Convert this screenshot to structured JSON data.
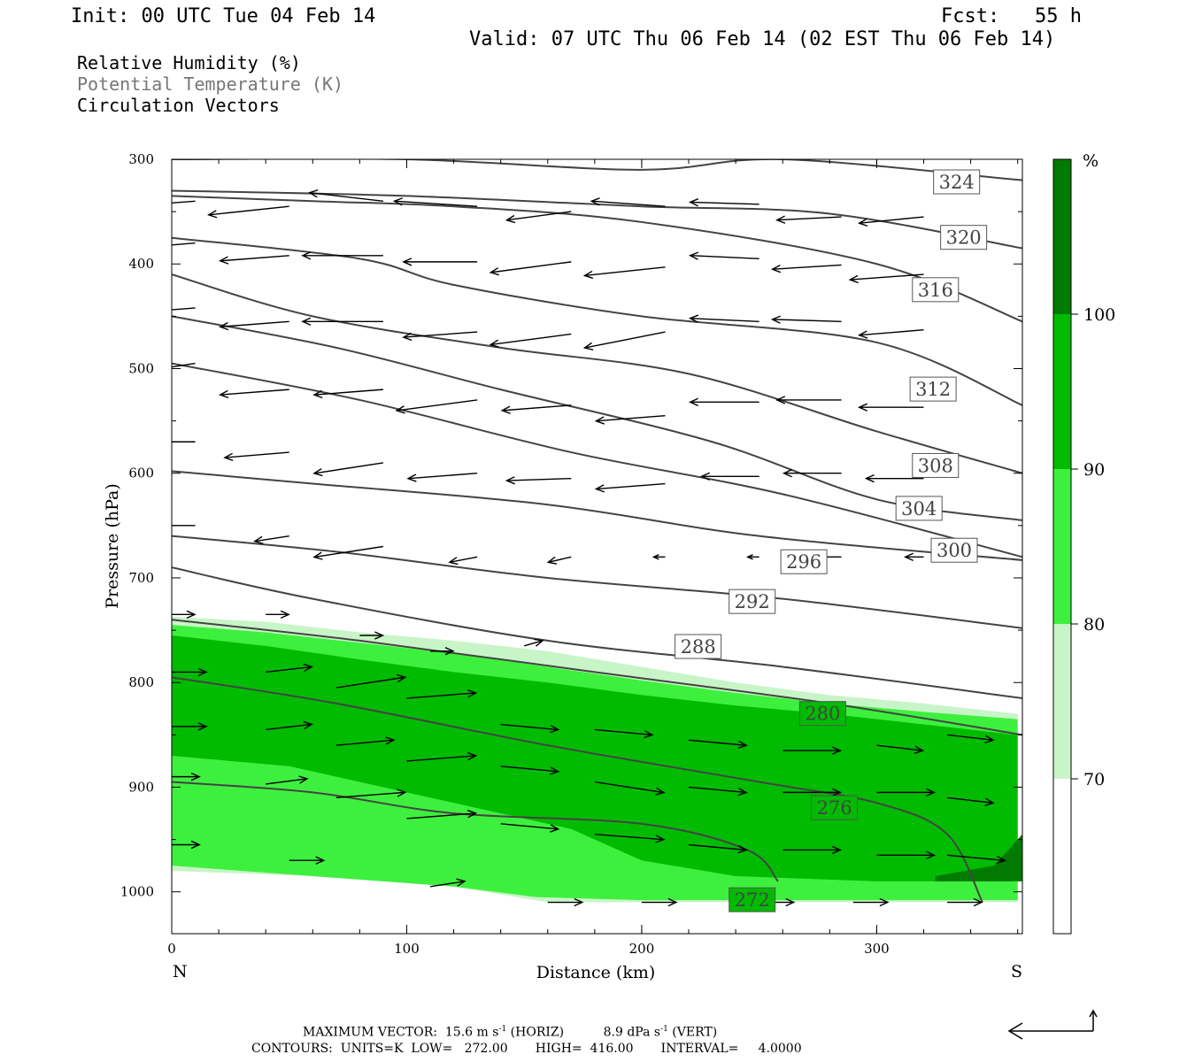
{
  "header": {
    "init": "Init: 00 UTC Tue 04 Feb 14",
    "fcst": "Fcst:   55 h",
    "valid": "Valid: 07 UTC Thu 06 Feb 14 (02 EST Thu 06 Feb 14)"
  },
  "legend": {
    "rh": "Relative Humidity (%)",
    "theta": "Potential Temperature (K)",
    "vectors": "Circulation Vectors"
  },
  "colors": {
    "rh70": "#c8f5c8",
    "rh80": "#3ef03e",
    "rh90": "#00bb00",
    "rh100": "#007a00",
    "theta": "#444444",
    "vector": "#000000"
  },
  "chart_data": {
    "type": "cross-section",
    "xlabel": "Distance (km)",
    "ylabel": "Pressure (hPa)",
    "xlim": [
      0,
      362
    ],
    "ylim": [
      1040,
      300
    ],
    "x_ticks": [
      "0",
      "100",
      "200",
      "300"
    ],
    "y_ticks": [
      "300",
      "400",
      "500",
      "600",
      "700",
      "800",
      "900",
      "1000"
    ],
    "endpoints": {
      "left": "N",
      "right": "S"
    },
    "colorbar": {
      "unit": "%",
      "levels": [
        "100",
        "90",
        "80",
        "70"
      ]
    },
    "rh_fill": [
      {
        "level": "70-80",
        "top": [
          [
            0,
            737
          ],
          [
            40,
            742
          ],
          [
            80,
            752
          ],
          [
            120,
            760
          ],
          [
            160,
            770
          ],
          [
            200,
            785
          ],
          [
            240,
            800
          ],
          [
            280,
            812
          ],
          [
            320,
            820
          ],
          [
            360,
            830
          ]
        ],
        "bottom": [
          [
            0,
            980
          ],
          [
            60,
            985
          ],
          [
            120,
            995
          ],
          [
            160,
            1010
          ],
          [
            200,
            1010
          ],
          [
            280,
            1010
          ],
          [
            360,
            1010
          ]
        ]
      },
      {
        "level": "80-90",
        "top": [
          [
            0,
            745
          ],
          [
            40,
            752
          ],
          [
            80,
            762
          ],
          [
            120,
            772
          ],
          [
            160,
            785
          ],
          [
            200,
            798
          ],
          [
            240,
            810
          ],
          [
            280,
            820
          ],
          [
            320,
            828
          ],
          [
            360,
            835
          ]
        ],
        "bottom": [
          [
            0,
            975
          ],
          [
            60,
            985
          ],
          [
            120,
            995
          ],
          [
            155,
            1005
          ],
          [
            200,
            1008
          ],
          [
            280,
            1008
          ],
          [
            360,
            1008
          ]
        ]
      },
      {
        "level": "90-100",
        "top": [
          [
            0,
            755
          ],
          [
            40,
            765
          ],
          [
            80,
            778
          ],
          [
            120,
            790
          ],
          [
            160,
            800
          ],
          [
            200,
            812
          ],
          [
            240,
            822
          ],
          [
            280,
            830
          ],
          [
            320,
            840
          ],
          [
            360,
            850
          ]
        ],
        "bottom": [
          [
            0,
            870
          ],
          [
            50,
            880
          ],
          [
            90,
            900
          ],
          [
            130,
            920
          ],
          [
            170,
            940
          ],
          [
            200,
            970
          ],
          [
            240,
            985
          ],
          [
            300,
            990
          ],
          [
            360,
            990
          ]
        ]
      },
      {
        "level": ">100",
        "top": [
          [
            325,
            985
          ],
          [
            350,
            975
          ],
          [
            362,
            945
          ]
        ],
        "bottom": [
          [
            325,
            990
          ],
          [
            362,
            990
          ]
        ]
      }
    ],
    "theta_contours": [
      {
        "value": "324",
        "points": [
          [
            0,
            300
          ],
          [
            100,
            300
          ],
          [
            200,
            310
          ],
          [
            260,
            300
          ],
          [
            362,
            320
          ]
        ],
        "label": [
          334,
          322
        ]
      },
      {
        "value": "320",
        "points": [
          [
            0,
            330
          ],
          [
            100,
            335
          ],
          [
            200,
            345
          ],
          [
            280,
            352
          ],
          [
            362,
            385
          ]
        ],
        "label": [
          337,
          375
        ]
      },
      {
        "value": "316",
        "points": [
          [
            0,
            335
          ],
          [
            60,
            340
          ],
          [
            120,
            345
          ],
          [
            200,
            360
          ],
          [
            300,
            400
          ],
          [
            362,
            455
          ]
        ],
        "label": [
          325,
          425
        ]
      },
      {
        "value": "312",
        "points": [
          [
            0,
            375
          ],
          [
            80,
            395
          ],
          [
            120,
            420
          ],
          [
            200,
            450
          ],
          [
            300,
            475
          ],
          [
            362,
            535
          ]
        ],
        "label": [
          324,
          520
        ]
      },
      {
        "value": "308",
        "points": [
          [
            0,
            410
          ],
          [
            60,
            450
          ],
          [
            140,
            480
          ],
          [
            220,
            505
          ],
          [
            300,
            560
          ],
          [
            362,
            600
          ]
        ],
        "label": [
          325,
          593
        ]
      },
      {
        "value": "304",
        "points": [
          [
            0,
            450
          ],
          [
            70,
            480
          ],
          [
            140,
            520
          ],
          [
            230,
            570
          ],
          [
            300,
            625
          ],
          [
            362,
            645
          ]
        ],
        "label": [
          318,
          634
        ]
      },
      {
        "value": "300",
        "points": [
          [
            0,
            495
          ],
          [
            80,
            530
          ],
          [
            170,
            580
          ],
          [
            260,
            620
          ],
          [
            362,
            680
          ]
        ],
        "label": [
          333,
          674
        ]
      },
      {
        "value": "296",
        "points": [
          [
            0,
            598
          ],
          [
            60,
            610
          ],
          [
            160,
            630
          ],
          [
            250,
            660
          ],
          [
            362,
            683
          ]
        ],
        "label": [
          269,
          685
        ]
      },
      {
        "value": "292",
        "points": [
          [
            0,
            660
          ],
          [
            70,
            675
          ],
          [
            160,
            700
          ],
          [
            260,
            720
          ],
          [
            362,
            748
          ]
        ],
        "label": [
          247,
          723
        ]
      },
      {
        "value": "288",
        "points": [
          [
            0,
            690
          ],
          [
            60,
            720
          ],
          [
            160,
            760
          ],
          [
            260,
            785
          ],
          [
            362,
            815
          ]
        ],
        "label": [
          224,
          766
        ]
      },
      {
        "value": "280",
        "points": [
          [
            0,
            740
          ],
          [
            80,
            760
          ],
          [
            180,
            790
          ],
          [
            280,
            820
          ],
          [
            362,
            850
          ]
        ],
        "label": [
          277,
          830
        ]
      },
      {
        "value": "276",
        "points": [
          [
            0,
            795
          ],
          [
            70,
            820
          ],
          [
            160,
            860
          ],
          [
            250,
            895
          ],
          [
            300,
            915
          ],
          [
            330,
            945
          ],
          [
            345,
            1010
          ]
        ],
        "label": [
          282,
          920
        ]
      },
      {
        "value": "272",
        "points": [
          [
            0,
            895
          ],
          [
            60,
            905
          ],
          [
            120,
            925
          ],
          [
            200,
            935
          ],
          [
            245,
            960
          ],
          [
            258,
            990
          ]
        ],
        "label": [
          247,
          1008
        ]
      }
    ],
    "vectors": [
      [
        10,
        340,
        -30,
        -5
      ],
      [
        50,
        345,
        -35,
        -8
      ],
      [
        90,
        340,
        -32,
        8
      ],
      [
        130,
        345,
        -36,
        5
      ],
      [
        170,
        350,
        -28,
        -8
      ],
      [
        210,
        345,
        -32,
        5
      ],
      [
        250,
        343,
        -30,
        2
      ],
      [
        285,
        355,
        -28,
        -3
      ],
      [
        320,
        355,
        -28,
        -6
      ],
      [
        10,
        380,
        -28,
        -5
      ],
      [
        50,
        392,
        -30,
        -5
      ],
      [
        90,
        392,
        -35,
        0
      ],
      [
        130,
        398,
        -32,
        0
      ],
      [
        170,
        398,
        -35,
        -10
      ],
      [
        210,
        403,
        -35,
        -8
      ],
      [
        250,
        395,
        -30,
        3
      ],
      [
        285,
        401,
        -30,
        -4
      ],
      [
        320,
        410,
        -32,
        -5
      ],
      [
        10,
        442,
        -28,
        -5
      ],
      [
        50,
        455,
        -30,
        -5
      ],
      [
        90,
        455,
        -35,
        0
      ],
      [
        130,
        465,
        -32,
        -5
      ],
      [
        170,
        467,
        -35,
        -10
      ],
      [
        210,
        465,
        -35,
        -15
      ],
      [
        250,
        455,
        -30,
        3
      ],
      [
        285,
        455,
        -30,
        2
      ],
      [
        320,
        463,
        -28,
        -5
      ],
      [
        10,
        495,
        -15,
        -5
      ],
      [
        50,
        520,
        -30,
        -5
      ],
      [
        90,
        520,
        -30,
        -5
      ],
      [
        130,
        530,
        -35,
        -10
      ],
      [
        170,
        535,
        -30,
        -5
      ],
      [
        210,
        545,
        -30,
        -5
      ],
      [
        250,
        532,
        -30,
        0
      ],
      [
        285,
        530,
        -28,
        0
      ],
      [
        320,
        537,
        -28,
        0
      ],
      [
        10,
        570,
        -28,
        0
      ],
      [
        50,
        580,
        -28,
        -5
      ],
      [
        90,
        590,
        -30,
        -10
      ],
      [
        130,
        600,
        -30,
        -5
      ],
      [
        170,
        605,
        -28,
        -2
      ],
      [
        210,
        610,
        -30,
        -5
      ],
      [
        250,
        603,
        -25,
        0
      ],
      [
        285,
        600,
        -25,
        0
      ],
      [
        320,
        605,
        -25,
        0
      ],
      [
        10,
        650,
        -15,
        0
      ],
      [
        50,
        660,
        -15,
        -5
      ],
      [
        90,
        670,
        -30,
        -10
      ],
      [
        130,
        680,
        -12,
        -5
      ],
      [
        170,
        680,
        -10,
        -5
      ],
      [
        210,
        680,
        -5,
        0
      ],
      [
        250,
        680,
        -5,
        0
      ],
      [
        285,
        680,
        -10,
        0
      ],
      [
        320,
        680,
        -8,
        0
      ],
      [
        0,
        735,
        10,
        0
      ],
      [
        40,
        735,
        10,
        0
      ],
      [
        80,
        755,
        10,
        0
      ],
      [
        110,
        770,
        10,
        0
      ],
      [
        150,
        765,
        8,
        5
      ]
    ],
    "vectors_low": [
      [
        0,
        790,
        15,
        0
      ],
      [
        40,
        790,
        20,
        5
      ],
      [
        70,
        805,
        30,
        10
      ],
      [
        100,
        815,
        30,
        5
      ],
      [
        140,
        840,
        25,
        -5
      ],
      [
        180,
        845,
        25,
        -5
      ],
      [
        220,
        855,
        25,
        -5
      ],
      [
        260,
        865,
        25,
        0
      ],
      [
        300,
        860,
        20,
        -5
      ],
      [
        330,
        850,
        20,
        -5
      ],
      [
        0,
        842,
        15,
        0
      ],
      [
        40,
        845,
        20,
        5
      ],
      [
        70,
        860,
        25,
        5
      ],
      [
        100,
        875,
        30,
        5
      ],
      [
        140,
        880,
        25,
        -5
      ],
      [
        180,
        895,
        30,
        -10
      ],
      [
        220,
        900,
        25,
        -5
      ],
      [
        260,
        905,
        25,
        0
      ],
      [
        300,
        905,
        25,
        0
      ],
      [
        330,
        910,
        20,
        -5
      ],
      [
        0,
        890,
        12,
        0
      ],
      [
        40,
        897,
        18,
        5
      ],
      [
        70,
        910,
        30,
        5
      ],
      [
        100,
        930,
        30,
        5
      ],
      [
        140,
        935,
        25,
        -5
      ],
      [
        180,
        945,
        30,
        -5
      ],
      [
        220,
        955,
        25,
        -5
      ],
      [
        260,
        960,
        25,
        0
      ],
      [
        300,
        965,
        25,
        0
      ],
      [
        330,
        965,
        25,
        -5
      ],
      [
        0,
        955,
        12,
        0
      ],
      [
        50,
        970,
        15,
        0
      ],
      [
        110,
        995,
        15,
        5
      ],
      [
        160,
        1010,
        15,
        0
      ],
      [
        200,
        1010,
        15,
        0
      ],
      [
        250,
        1010,
        15,
        0
      ],
      [
        290,
        1010,
        15,
        0
      ],
      [
        330,
        1010,
        15,
        0
      ]
    ]
  },
  "footer": {
    "max_vector_label": "MAXIMUM VECTOR:",
    "horiz": "15.6 m s",
    "horiz_exp": "-1",
    "horiz_tag": "(HORIZ)",
    "vert": "8.9 dPa s",
    "vert_exp": "-1",
    "vert_tag": "(VERT)",
    "contours": "CONTOURS:  UNITS=K  LOW=   272.00       HIGH=  416.00       INTERVAL=     4.0000"
  }
}
